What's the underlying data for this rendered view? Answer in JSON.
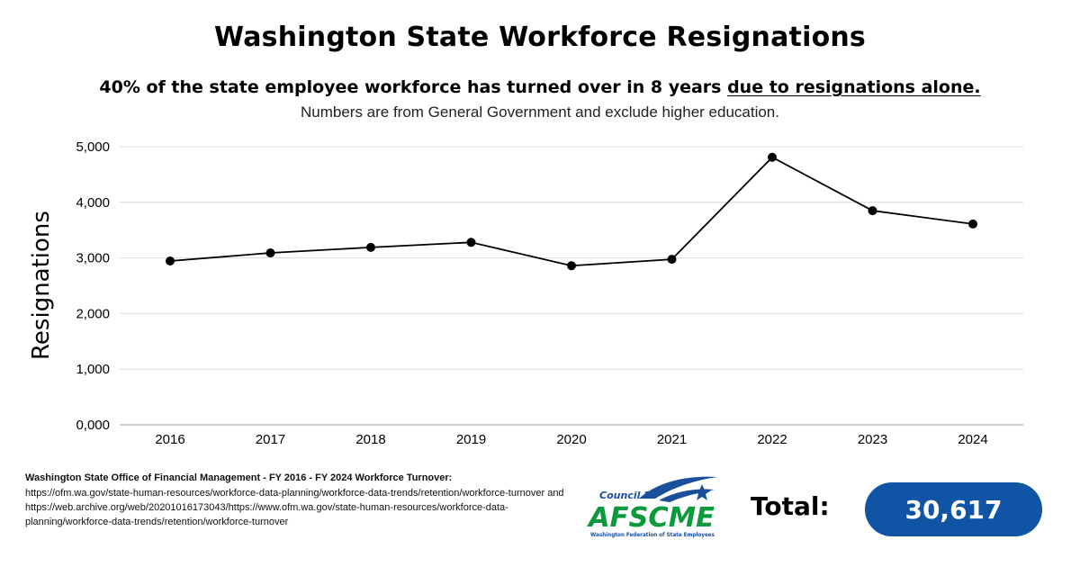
{
  "header": {
    "title": "Washington State Workforce Resignations",
    "subtitle_main": "40% of the state employee workforce has turned over in 8 years ",
    "subtitle_emphasis": "due to resignations alone.",
    "note": "Numbers are from General Government and exclude higher education."
  },
  "chart_data": {
    "type": "line",
    "title": "",
    "xlabel": "",
    "ylabel": "Resignations",
    "categories": [
      "2016",
      "2017",
      "2018",
      "2019",
      "2020",
      "2021",
      "2022",
      "2023",
      "2024"
    ],
    "series": [
      {
        "values": [
          2945,
          3090,
          3190,
          3280,
          2860,
          2975,
          4810,
          3850,
          3610
        ]
      }
    ],
    "ylim": [
      0,
      5000
    ],
    "yticks": [
      0,
      1000,
      2000,
      3000,
      4000,
      5000
    ],
    "ytick_labels": [
      "0,000",
      "1,000",
      "2,000",
      "3,000",
      "4,000",
      "5,000"
    ],
    "grid": "horizontal",
    "line_color": "#000000",
    "marker_color": "#000000",
    "grid_color": "#d9d9d9"
  },
  "source": {
    "heading": "Washington State Office of Financial Management - FY 2016 - FY 2024 Workforce Turnover:",
    "link1": "https://ofm.wa.gov/state-human-resources/workforce-data-planning/workforce-data-trends/retention/workforce-turnover and",
    "link2": "https://web.archive.org/web/20201016173043/https://www.ofm.wa.gov/state-human-resources/workforce-data-planning/workforce-data-trends/retention/workforce-turnover"
  },
  "logo": {
    "council": "Council 28",
    "name": "AFSCME",
    "tagline": "Washington Federation of State Employees",
    "green": "#0a9a3c",
    "blue": "#1a4f9c"
  },
  "total": {
    "label": "Total:",
    "value": "30,617",
    "pill_color": "#1055a5"
  }
}
